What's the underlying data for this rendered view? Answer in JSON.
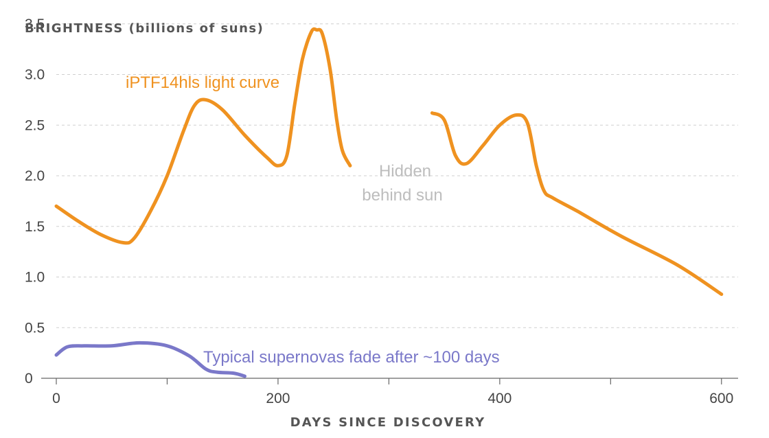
{
  "chart_data": {
    "type": "line",
    "ylabel": "BRIGHTNESS (billions of suns)",
    "xlabel": "DAYS SINCE DISCOVERY",
    "xlim": [
      0,
      615
    ],
    "ylim": [
      0,
      3.6
    ],
    "x_ticks": [
      0,
      100,
      200,
      300,
      400,
      500,
      600
    ],
    "x_tick_labels": [
      "0",
      "",
      "200",
      "",
      "400",
      "",
      "600"
    ],
    "y_ticks": [
      0,
      0.5,
      1.0,
      1.5,
      2.0,
      2.5,
      3.0,
      3.5
    ],
    "y_tick_labels": [
      "0",
      "0.5",
      "1.0",
      "1.5",
      "2.0",
      "2.5",
      "3.0",
      "3.5"
    ],
    "grid": true,
    "colors": {
      "main": "#ef9220",
      "typical": "#7a78c9",
      "hidden": "#bdbdbd"
    },
    "series": [
      {
        "name": "iPTF14hls light curve",
        "segments": [
          [
            [
              0,
              1.7
            ],
            [
              20,
              1.55
            ],
            [
              40,
              1.42
            ],
            [
              60,
              1.34
            ],
            [
              70,
              1.38
            ],
            [
              85,
              1.65
            ],
            [
              100,
              2.0
            ],
            [
              115,
              2.45
            ],
            [
              125,
              2.7
            ],
            [
              135,
              2.75
            ],
            [
              150,
              2.65
            ],
            [
              170,
              2.4
            ],
            [
              190,
              2.18
            ],
            [
              200,
              2.1
            ],
            [
              208,
              2.2
            ],
            [
              215,
              2.7
            ],
            [
              222,
              3.15
            ],
            [
              230,
              3.42
            ],
            [
              235,
              3.44
            ],
            [
              240,
              3.4
            ],
            [
              247,
              3.05
            ],
            [
              253,
              2.55
            ],
            [
              258,
              2.25
            ],
            [
              265,
              2.1
            ]
          ],
          [
            [
              339,
              2.62
            ],
            [
              350,
              2.55
            ],
            [
              360,
              2.2
            ],
            [
              370,
              2.12
            ],
            [
              385,
              2.3
            ],
            [
              400,
              2.5
            ],
            [
              415,
              2.6
            ],
            [
              425,
              2.52
            ],
            [
              433,
              2.1
            ],
            [
              440,
              1.85
            ],
            [
              448,
              1.78
            ],
            [
              470,
              1.65
            ],
            [
              510,
              1.4
            ],
            [
              560,
              1.12
            ],
            [
              600,
              0.83
            ]
          ]
        ]
      },
      {
        "name": "Typical supernovas",
        "segments": [
          [
            [
              0,
              0.23
            ],
            [
              10,
              0.31
            ],
            [
              25,
              0.32
            ],
            [
              50,
              0.32
            ],
            [
              75,
              0.35
            ],
            [
              100,
              0.32
            ],
            [
              120,
              0.22
            ],
            [
              135,
              0.09
            ],
            [
              145,
              0.06
            ],
            [
              160,
              0.05
            ],
            [
              170,
              0.02
            ]
          ]
        ]
      }
    ],
    "annotations": {
      "main_label": "iPTF14hls light curve",
      "hidden_line1": "Hidden",
      "hidden_line2": "behind sun",
      "typical_label": "Typical supernovas fade after ~100 days"
    }
  }
}
